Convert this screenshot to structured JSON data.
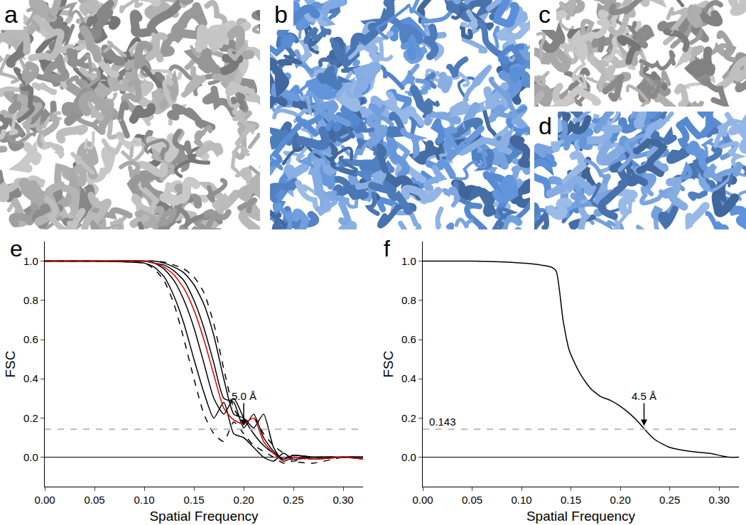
{
  "panels": [
    {
      "label": "a",
      "color": "#a8a8a8"
    },
    {
      "label": "b",
      "color": "#5a8fd8"
    },
    {
      "label": "c",
      "color": "#a8a8a8"
    },
    {
      "label": "d",
      "color": "#5a8fd8"
    }
  ],
  "chart_data": [
    {
      "panel_label": "e",
      "type": "line",
      "xlabel": "Spatial Frequency",
      "ylabel": "FSC",
      "x": [
        0,
        0.05,
        0.1,
        0.11,
        0.12,
        0.13,
        0.14,
        0.15,
        0.16,
        0.17,
        0.18,
        0.19,
        0.2,
        0.21,
        0.22,
        0.23,
        0.24,
        0.25,
        0.27,
        0.3,
        0.32
      ],
      "series": [
        {
          "color": "#000000",
          "line_style": "dash",
          "values": [
            1,
            1,
            0.99,
            0.96,
            0.9,
            0.78,
            0.6,
            0.4,
            0.22,
            0.12,
            0.08,
            0.18,
            0.12,
            0.06,
            0.03,
            0.0,
            -0.03,
            -0.02,
            0,
            0,
            0
          ]
        },
        {
          "color": "#000000",
          "line_style": "solid",
          "values": [
            1,
            1,
            0.99,
            0.97,
            0.92,
            0.82,
            0.68,
            0.5,
            0.33,
            0.2,
            0.28,
            0.12,
            0.1,
            0.05,
            0.0,
            -0.02,
            0.02,
            -0.01,
            0,
            0,
            -0.01
          ]
        },
        {
          "color": "#000000",
          "line_style": "solid",
          "values": [
            1,
            1,
            1,
            0.99,
            0.96,
            0.9,
            0.8,
            0.66,
            0.48,
            0.3,
            0.22,
            0.3,
            0.2,
            0.12,
            0.06,
            0.02,
            -0.01,
            0.01,
            0,
            0,
            0
          ]
        },
        {
          "color": "#000000",
          "line_style": "solid",
          "values": [
            1,
            1,
            1,
            0.99,
            0.98,
            0.95,
            0.9,
            0.8,
            0.66,
            0.48,
            0.3,
            0.28,
            0.15,
            0.22,
            0.1,
            0.03,
            -0.01,
            0.01,
            0,
            0,
            0
          ]
        },
        {
          "color": "#000000",
          "line_style": "solid",
          "values": [
            1,
            1,
            1,
            1,
            0.99,
            0.97,
            0.94,
            0.88,
            0.78,
            0.62,
            0.4,
            0.22,
            0.2,
            0.15,
            0.22,
            0.05,
            -0.02,
            0.0,
            -0.01,
            0,
            0
          ]
        },
        {
          "color": "#000000",
          "line_style": "dash",
          "values": [
            1,
            1,
            1,
            1,
            0.995,
            0.98,
            0.96,
            0.92,
            0.84,
            0.68,
            0.45,
            0.25,
            0.18,
            0.2,
            0.12,
            0.06,
            0.02,
            -0.02,
            -0.03,
            0,
            0
          ]
        },
        {
          "color": "#e00000",
          "line_style": "solid",
          "values": [
            1,
            1,
            1,
            0.99,
            0.97,
            0.93,
            0.86,
            0.75,
            0.6,
            0.42,
            0.25,
            0.19,
            0.17,
            0.2,
            0.08,
            0.02,
            -0.02,
            0.0,
            -0.01,
            0.0,
            -0.01
          ]
        }
      ],
      "xlim": [
        0,
        0.32
      ],
      "ylim": [
        -0.15,
        1.1
      ],
      "xticks": [
        {
          "value": 0,
          "label": "0.00"
        },
        {
          "value": 0.05,
          "label": "0.05"
        },
        {
          "value": 0.1,
          "label": "0.10"
        },
        {
          "value": 0.15,
          "label": "0.15"
        },
        {
          "value": 0.2,
          "label": "0.20"
        },
        {
          "value": 0.25,
          "label": "0.25"
        },
        {
          "value": 0.3,
          "label": "0.30"
        }
      ],
      "yticks": [
        {
          "value": 0,
          "label": "0.0"
        },
        {
          "value": 0.2,
          "label": "0.2"
        },
        {
          "value": 0.4,
          "label": "0.4"
        },
        {
          "value": 0.6,
          "label": "0.6"
        },
        {
          "value": 0.8,
          "label": "0.8"
        },
        {
          "value": 1,
          "label": "1.0"
        }
      ],
      "threshold": 0.143,
      "annotations": [
        {
          "text": "5.0 Å",
          "x": 0.2,
          "y": 0.16
        }
      ],
      "grid": false
    },
    {
      "panel_label": "f",
      "type": "line",
      "xlabel": "Spatial Frequency",
      "ylabel": "FSC",
      "x": [
        0,
        0.05,
        0.1,
        0.12,
        0.13,
        0.135,
        0.142,
        0.148,
        0.152,
        0.16,
        0.17,
        0.18,
        0.19,
        0.2,
        0.21,
        0.22,
        0.225,
        0.235,
        0.25,
        0.27,
        0.29,
        0.31,
        0.32
      ],
      "series": [
        {
          "color": "#000000",
          "line_style": "solid",
          "values": [
            1,
            1,
            0.99,
            0.98,
            0.97,
            0.95,
            0.7,
            0.55,
            0.5,
            0.42,
            0.35,
            0.31,
            0.29,
            0.26,
            0.22,
            0.17,
            0.14,
            0.09,
            0.05,
            0.03,
            0.02,
            0.0,
            0.0
          ]
        }
      ],
      "xlim": [
        0,
        0.32
      ],
      "ylim": [
        -0.15,
        1.1
      ],
      "xticks": [
        {
          "value": 0,
          "label": "0.00"
        },
        {
          "value": 0.05,
          "label": "0.05"
        },
        {
          "value": 0.1,
          "label": "0.10"
        },
        {
          "value": 0.15,
          "label": "0.15"
        },
        {
          "value": 0.2,
          "label": "0.20"
        },
        {
          "value": 0.25,
          "label": "0.25"
        },
        {
          "value": 0.3,
          "label": "0.30"
        }
      ],
      "yticks": [
        {
          "value": 0,
          "label": "0.0"
        },
        {
          "value": 0.2,
          "label": "0.2"
        },
        {
          "value": 0.4,
          "label": "0.4"
        },
        {
          "value": 0.6,
          "label": "0.6"
        },
        {
          "value": 0.8,
          "label": "0.8"
        },
        {
          "value": 1,
          "label": "1.0"
        }
      ],
      "threshold": {
        "value": 0.143,
        "label": "0.143"
      },
      "annotations": [
        {
          "text": "4.5 Å",
          "x": 0.224,
          "y": 0.16
        }
      ],
      "grid": false
    }
  ]
}
